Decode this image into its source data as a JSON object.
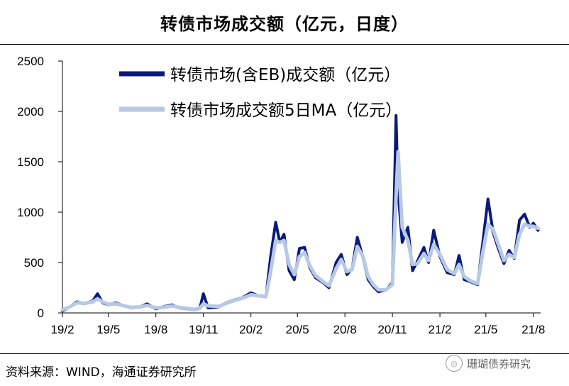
{
  "header": {
    "title": "转债市场成交额（亿元，日度）"
  },
  "footer": {
    "source": "资料来源：WIND，海通证券研究所"
  },
  "watermark": {
    "text": "珊瑚债券研究",
    "icon": "wechat-icon"
  },
  "colors": {
    "series1": "#0a1a7a",
    "series2": "#b7c9e4"
  },
  "chart_data": {
    "type": "line",
    "ylim": [
      0,
      2500
    ],
    "yticks": [
      0,
      500,
      1000,
      1500,
      2000,
      2500
    ],
    "xlim": [
      "2019-02-01",
      "2021-08-15"
    ],
    "xticks": [
      "2019-02-01",
      "2019-05-01",
      "2019-08-01",
      "2019-11-01",
      "2020-02-01",
      "2020-05-01",
      "2020-08-01",
      "2020-11-01",
      "2021-02-01",
      "2021-05-01",
      "2021-08-01"
    ],
    "xticklabels": [
      "19/2",
      "19/5",
      "19/8",
      "19/11",
      "20/2",
      "20/5",
      "20/8",
      "20/11",
      "21/2",
      "21/5",
      "21/8"
    ],
    "legend_position": "top-left",
    "series": [
      {
        "name": "转债市场(含EB)成交额（亿元）",
        "points": [
          [
            "2019-02-01",
            20
          ],
          [
            "2019-02-15",
            60
          ],
          [
            "2019-03-01",
            110
          ],
          [
            "2019-03-15",
            90
          ],
          [
            "2019-04-01",
            120
          ],
          [
            "2019-04-10",
            190
          ],
          [
            "2019-04-20",
            100
          ],
          [
            "2019-05-01",
            80
          ],
          [
            "2019-05-15",
            100
          ],
          [
            "2019-06-01",
            70
          ],
          [
            "2019-06-15",
            50
          ],
          [
            "2019-07-01",
            60
          ],
          [
            "2019-07-15",
            90
          ],
          [
            "2019-08-01",
            40
          ],
          [
            "2019-08-15",
            60
          ],
          [
            "2019-09-01",
            80
          ],
          [
            "2019-09-15",
            50
          ],
          [
            "2019-10-01",
            40
          ],
          [
            "2019-10-15",
            30
          ],
          [
            "2019-10-25",
            45
          ],
          [
            "2019-11-01",
            190
          ],
          [
            "2019-11-10",
            50
          ],
          [
            "2019-12-01",
            60
          ],
          [
            "2019-12-15",
            100
          ],
          [
            "2020-01-01",
            130
          ],
          [
            "2020-01-15",
            150
          ],
          [
            "2020-02-01",
            200
          ],
          [
            "2020-02-15",
            170
          ],
          [
            "2020-03-01",
            160
          ],
          [
            "2020-03-10",
            550
          ],
          [
            "2020-03-20",
            900
          ],
          [
            "2020-03-28",
            700
          ],
          [
            "2020-04-05",
            780
          ],
          [
            "2020-04-15",
            420
          ],
          [
            "2020-04-25",
            330
          ],
          [
            "2020-05-05",
            640
          ],
          [
            "2020-05-15",
            650
          ],
          [
            "2020-05-25",
            450
          ],
          [
            "2020-06-05",
            350
          ],
          [
            "2020-06-20",
            300
          ],
          [
            "2020-07-01",
            250
          ],
          [
            "2020-07-15",
            500
          ],
          [
            "2020-07-25",
            580
          ],
          [
            "2020-08-05",
            380
          ],
          [
            "2020-08-15",
            440
          ],
          [
            "2020-08-25",
            750
          ],
          [
            "2020-09-05",
            550
          ],
          [
            "2020-09-15",
            330
          ],
          [
            "2020-09-25",
            260
          ],
          [
            "2020-10-05",
            210
          ],
          [
            "2020-10-20",
            230
          ],
          [
            "2020-11-01",
            300
          ],
          [
            "2020-11-08",
            1960
          ],
          [
            "2020-11-12",
            1200
          ],
          [
            "2020-11-20",
            700
          ],
          [
            "2020-12-01",
            850
          ],
          [
            "2020-12-10",
            420
          ],
          [
            "2020-12-20",
            520
          ],
          [
            "2021-01-01",
            650
          ],
          [
            "2021-01-10",
            500
          ],
          [
            "2021-01-20",
            820
          ],
          [
            "2021-02-01",
            560
          ],
          [
            "2021-02-15",
            400
          ],
          [
            "2021-03-01",
            380
          ],
          [
            "2021-03-10",
            570
          ],
          [
            "2021-03-20",
            330
          ],
          [
            "2021-04-01",
            310
          ],
          [
            "2021-04-15",
            280
          ],
          [
            "2021-04-25",
            700
          ],
          [
            "2021-05-05",
            1130
          ],
          [
            "2021-05-15",
            800
          ],
          [
            "2021-05-25",
            640
          ],
          [
            "2021-06-05",
            490
          ],
          [
            "2021-06-15",
            620
          ],
          [
            "2021-06-25",
            540
          ],
          [
            "2021-07-05",
            920
          ],
          [
            "2021-07-15",
            980
          ],
          [
            "2021-07-25",
            850
          ],
          [
            "2021-08-01",
            890
          ],
          [
            "2021-08-10",
            820
          ]
        ]
      },
      {
        "name": "转债市场成交额5日MA（亿元）",
        "points": [
          [
            "2019-02-01",
            30
          ],
          [
            "2019-02-15",
            60
          ],
          [
            "2019-03-01",
            100
          ],
          [
            "2019-03-15",
            95
          ],
          [
            "2019-04-01",
            110
          ],
          [
            "2019-04-10",
            140
          ],
          [
            "2019-04-20",
            110
          ],
          [
            "2019-05-01",
            85
          ],
          [
            "2019-05-15",
            90
          ],
          [
            "2019-06-01",
            70
          ],
          [
            "2019-06-15",
            55
          ],
          [
            "2019-07-01",
            60
          ],
          [
            "2019-07-15",
            75
          ],
          [
            "2019-08-01",
            50
          ],
          [
            "2019-08-15",
            55
          ],
          [
            "2019-09-01",
            70
          ],
          [
            "2019-09-15",
            55
          ],
          [
            "2019-10-01",
            45
          ],
          [
            "2019-10-15",
            35
          ],
          [
            "2019-10-25",
            45
          ],
          [
            "2019-11-01",
            90
          ],
          [
            "2019-11-10",
            70
          ],
          [
            "2019-12-01",
            65
          ],
          [
            "2019-12-15",
            95
          ],
          [
            "2020-01-01",
            125
          ],
          [
            "2020-01-15",
            145
          ],
          [
            "2020-02-01",
            180
          ],
          [
            "2020-02-15",
            170
          ],
          [
            "2020-03-01",
            165
          ],
          [
            "2020-03-10",
            400
          ],
          [
            "2020-03-20",
            720
          ],
          [
            "2020-03-28",
            700
          ],
          [
            "2020-04-05",
            720
          ],
          [
            "2020-04-15",
            480
          ],
          [
            "2020-04-25",
            380
          ],
          [
            "2020-05-05",
            560
          ],
          [
            "2020-05-15",
            600
          ],
          [
            "2020-05-25",
            470
          ],
          [
            "2020-06-05",
            370
          ],
          [
            "2020-06-20",
            310
          ],
          [
            "2020-07-01",
            270
          ],
          [
            "2020-07-15",
            440
          ],
          [
            "2020-07-25",
            530
          ],
          [
            "2020-08-05",
            410
          ],
          [
            "2020-08-15",
            430
          ],
          [
            "2020-08-25",
            660
          ],
          [
            "2020-09-05",
            560
          ],
          [
            "2020-09-15",
            360
          ],
          [
            "2020-09-25",
            280
          ],
          [
            "2020-10-05",
            230
          ],
          [
            "2020-10-20",
            230
          ],
          [
            "2020-11-01",
            280
          ],
          [
            "2020-11-08",
            1150
          ],
          [
            "2020-11-12",
            1600
          ],
          [
            "2020-11-20",
            850
          ],
          [
            "2020-12-01",
            720
          ],
          [
            "2020-12-10",
            480
          ],
          [
            "2020-12-20",
            490
          ],
          [
            "2021-01-01",
            590
          ],
          [
            "2021-01-10",
            520
          ],
          [
            "2021-01-20",
            680
          ],
          [
            "2021-02-01",
            580
          ],
          [
            "2021-02-15",
            430
          ],
          [
            "2021-03-01",
            390
          ],
          [
            "2021-03-10",
            480
          ],
          [
            "2021-03-20",
            360
          ],
          [
            "2021-04-01",
            320
          ],
          [
            "2021-04-15",
            290
          ],
          [
            "2021-04-25",
            600
          ],
          [
            "2021-05-05",
            880
          ],
          [
            "2021-05-15",
            830
          ],
          [
            "2021-05-25",
            680
          ],
          [
            "2021-06-05",
            520
          ],
          [
            "2021-06-15",
            580
          ],
          [
            "2021-06-25",
            550
          ],
          [
            "2021-07-05",
            780
          ],
          [
            "2021-07-15",
            880
          ],
          [
            "2021-07-25",
            860
          ],
          [
            "2021-08-01",
            860
          ],
          [
            "2021-08-10",
            840
          ]
        ]
      }
    ]
  }
}
